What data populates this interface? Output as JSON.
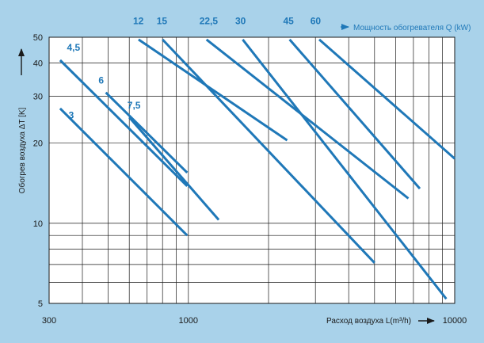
{
  "chart_data": {
    "type": "line",
    "title": "",
    "xlabel": "Расход воздуха L(m³/h)",
    "ylabel": "Обогрев воздуха ΔT [K]",
    "secondary_label": "Мощность обогревателя Q (kW)",
    "x_scale": "log",
    "y_scale": "log",
    "xlim": [
      300,
      10000
    ],
    "ylim": [
      5,
      50
    ],
    "x_tick_labels": [
      {
        "value": 300,
        "label": "300"
      },
      {
        "value": 1000,
        "label": "1000"
      },
      {
        "value": 10000,
        "label": "10000"
      }
    ],
    "y_tick_labels": [
      {
        "value": 5,
        "label": "5"
      },
      {
        "value": 10,
        "label": "10"
      },
      {
        "value": 20,
        "label": "20"
      },
      {
        "value": 30,
        "label": "30"
      },
      {
        "value": 40,
        "label": "40"
      },
      {
        "value": 50,
        "label": "50"
      }
    ],
    "x_gridlines": [
      300,
      400,
      500,
      600,
      700,
      800,
      900,
      1000,
      2000,
      3000,
      4000,
      5000,
      6000,
      7000,
      8000,
      9000,
      10000
    ],
    "y_gridlines": [
      5,
      6,
      7,
      8,
      9,
      10,
      20,
      30,
      40,
      50
    ],
    "grid": true,
    "legend": "none",
    "line_color": "#1f78b8",
    "series": [
      {
        "name": "3",
        "x": [
          330,
          990
        ],
        "y": [
          27,
          9
        ]
      },
      {
        "name": "4,5",
        "x": [
          330,
          990
        ],
        "y": [
          41,
          13.8
        ]
      },
      {
        "name": "6",
        "x": [
          490,
          990
        ],
        "y": [
          31,
          15.5
        ]
      },
      {
        "name": "7,5",
        "x": [
          600,
          1300
        ],
        "y": [
          25,
          10.3
        ]
      },
      {
        "name": "12",
        "x": [
          650,
          2350
        ],
        "y": [
          49,
          20.5
        ]
      },
      {
        "name": "15",
        "x": [
          800,
          5000
        ],
        "y": [
          49,
          7.1
        ]
      },
      {
        "name": "22,5",
        "x": [
          1170,
          6700
        ],
        "y": [
          49,
          12.4
        ]
      },
      {
        "name": "30",
        "x": [
          1600,
          9300
        ],
        "y": [
          49,
          5.2
        ]
      },
      {
        "name": "45",
        "x": [
          2400,
          7400
        ],
        "y": [
          49,
          13.5
        ]
      },
      {
        "name": "60",
        "x": [
          3100,
          10000
        ],
        "y": [
          49,
          17.5
        ]
      }
    ],
    "point_labels": [
      {
        "text": "3",
        "x": 355,
        "y": 24.8
      },
      {
        "text": "4,5",
        "x": 350,
        "y": 44.5
      },
      {
        "text": "6",
        "x": 460,
        "y": 33.5
      },
      {
        "text": "7,5",
        "x": 590,
        "y": 27
      },
      {
        "text": "12",
        "x": 620,
        "y": 56
      },
      {
        "text": "15",
        "x": 760,
        "y": 56
      },
      {
        "text": "22,5",
        "x": 1100,
        "y": 56
      },
      {
        "text": "30",
        "x": 1500,
        "y": 56
      },
      {
        "text": "45",
        "x": 2270,
        "y": 56
      },
      {
        "text": "60",
        "x": 2870,
        "y": 56
      }
    ]
  }
}
